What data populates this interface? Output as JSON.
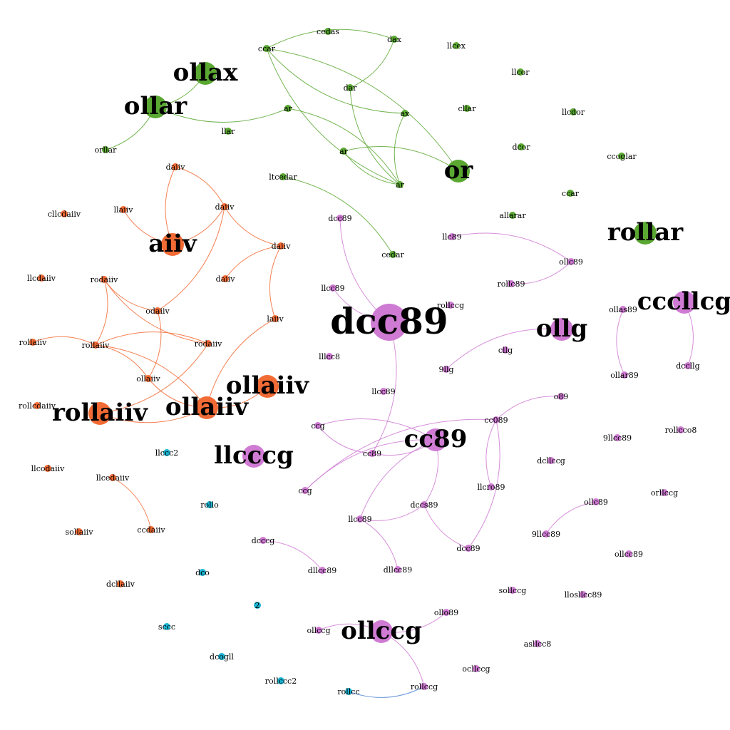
{
  "colors": {
    "green": "#5aa832",
    "orange": "#f26b35",
    "purple": "#cf7bd3",
    "cyan": "#1bb3d1",
    "blue_edge": "#4f86d6"
  },
  "nodes": [
    {
      "id": "g1",
      "label": "ollax",
      "group": "green",
      "size": "large"
    },
    {
      "id": "g2",
      "label": "ollar",
      "group": "green",
      "size": "large"
    },
    {
      "id": "g3",
      "label": "or",
      "group": "green",
      "size": "large"
    },
    {
      "id": "g4",
      "label": "rollar",
      "group": "green",
      "size": "large"
    },
    {
      "id": "g5",
      "label": "cedas",
      "group": "green",
      "size": "small"
    },
    {
      "id": "g6",
      "label": "ccar",
      "group": "green",
      "size": "small"
    },
    {
      "id": "g7",
      "label": "dax",
      "group": "green",
      "size": "small"
    },
    {
      "id": "g8",
      "label": "dar",
      "group": "green",
      "size": "small"
    },
    {
      "id": "g9",
      "label": "ar",
      "group": "green",
      "size": "small"
    },
    {
      "id": "g10",
      "label": "ax",
      "group": "green",
      "size": "small"
    },
    {
      "id": "g11",
      "label": "llar",
      "group": "green",
      "size": "small"
    },
    {
      "id": "g12",
      "label": "orllar",
      "group": "green",
      "size": "small"
    },
    {
      "id": "g13",
      "label": "ar",
      "group": "green",
      "size": "small"
    },
    {
      "id": "g14",
      "label": "ar",
      "group": "green",
      "size": "small"
    },
    {
      "id": "g15",
      "label": "ltcedar",
      "group": "green",
      "size": "small"
    },
    {
      "id": "g16",
      "label": "cedar",
      "group": "green",
      "size": "small"
    },
    {
      "id": "g17",
      "label": "llcex",
      "group": "green",
      "size": "small"
    },
    {
      "id": "g18",
      "label": "llcor",
      "group": "green",
      "size": "small"
    },
    {
      "id": "g19",
      "label": "cllar",
      "group": "green",
      "size": "small"
    },
    {
      "id": "g20",
      "label": "llcdor",
      "group": "green",
      "size": "small"
    },
    {
      "id": "g21",
      "label": "dcor",
      "group": "green",
      "size": "small"
    },
    {
      "id": "g22",
      "label": "ccoglar",
      "group": "green",
      "size": "small"
    },
    {
      "id": "g23",
      "label": "ccar",
      "group": "green",
      "size": "small"
    },
    {
      "id": "g24",
      "label": "allarar",
      "group": "green",
      "size": "small"
    },
    {
      "id": "o1",
      "label": "aiiv",
      "group": "orange",
      "size": "large"
    },
    {
      "id": "o2",
      "label": "ollaiiv",
      "group": "orange",
      "size": "large"
    },
    {
      "id": "o3",
      "label": "rollaiiv",
      "group": "orange",
      "size": "large"
    },
    {
      "id": "o4",
      "label": "ollaiiv",
      "group": "orange",
      "size": "large"
    },
    {
      "id": "o5",
      "label": "daiiv",
      "group": "orange",
      "size": "small"
    },
    {
      "id": "o6",
      "label": "daiiv",
      "group": "orange",
      "size": "small"
    },
    {
      "id": "o7",
      "label": "llaiiv",
      "group": "orange",
      "size": "small"
    },
    {
      "id": "o8",
      "label": "cllcdaiiv",
      "group": "orange",
      "size": "small"
    },
    {
      "id": "o9",
      "label": "daiiv",
      "group": "orange",
      "size": "small"
    },
    {
      "id": "o10",
      "label": "daiiv",
      "group": "orange",
      "size": "small"
    },
    {
      "id": "o11",
      "label": "llcdaiiv",
      "group": "orange",
      "size": "small"
    },
    {
      "id": "o12",
      "label": "rodaiiv",
      "group": "orange",
      "size": "small"
    },
    {
      "id": "o13",
      "label": "odaiiv",
      "group": "orange",
      "size": "small"
    },
    {
      "id": "o14",
      "label": "laiiv",
      "group": "orange",
      "size": "small"
    },
    {
      "id": "o15",
      "label": "rollaiiv",
      "group": "orange",
      "size": "small"
    },
    {
      "id": "o16",
      "label": "rodaiiv",
      "group": "orange",
      "size": "small"
    },
    {
      "id": "o17",
      "label": "ollaiiv",
      "group": "orange",
      "size": "small"
    },
    {
      "id": "o18",
      "label": "rollaiiv",
      "group": "orange",
      "size": "small"
    },
    {
      "id": "o19",
      "label": "rollcdaiiv",
      "group": "orange",
      "size": "small"
    },
    {
      "id": "o20",
      "label": "llcodaiiv",
      "group": "orange",
      "size": "small"
    },
    {
      "id": "o21",
      "label": "llcedaiiv",
      "group": "orange",
      "size": "small"
    },
    {
      "id": "o22",
      "label": "sollaiiv",
      "group": "orange",
      "size": "small"
    },
    {
      "id": "o23",
      "label": "ccdaiiv",
      "group": "orange",
      "size": "small"
    },
    {
      "id": "o24",
      "label": "dcllaiiv",
      "group": "orange",
      "size": "small"
    },
    {
      "id": "p1",
      "label": "dcc89",
      "group": "purple",
      "size": "xlarge"
    },
    {
      "id": "p2",
      "label": "cc89",
      "group": "purple",
      "size": "large"
    },
    {
      "id": "p3",
      "label": "ollg",
      "group": "purple",
      "size": "large"
    },
    {
      "id": "p4",
      "label": "llcccg",
      "group": "purple",
      "size": "large"
    },
    {
      "id": "p5",
      "label": "cccllcg",
      "group": "purple",
      "size": "large"
    },
    {
      "id": "p6",
      "label": "ollccg",
      "group": "purple",
      "size": "large"
    },
    {
      "id": "p7",
      "label": "dcc89",
      "group": "purple",
      "size": "small"
    },
    {
      "id": "p8",
      "label": "llcc89",
      "group": "purple",
      "size": "small"
    },
    {
      "id": "p9",
      "label": "llc89",
      "group": "purple",
      "size": "small"
    },
    {
      "id": "p10",
      "label": "ollc89",
      "group": "purple",
      "size": "small"
    },
    {
      "id": "p11",
      "label": "rollc89",
      "group": "purple",
      "size": "small"
    },
    {
      "id": "p12",
      "label": "rollccg",
      "group": "purple",
      "size": "small"
    },
    {
      "id": "p13",
      "label": "lllcc8",
      "group": "purple",
      "size": "small"
    },
    {
      "id": "p14",
      "label": "cllg",
      "group": "purple",
      "size": "small"
    },
    {
      "id": "p15",
      "label": "9llg",
      "group": "purple",
      "size": "small"
    },
    {
      "id": "p16",
      "label": "ollas89",
      "group": "purple",
      "size": "small"
    },
    {
      "id": "p17",
      "label": "ollar89",
      "group": "purple",
      "size": "small"
    },
    {
      "id": "p18",
      "label": "dccllg",
      "group": "purple",
      "size": "small"
    },
    {
      "id": "p19",
      "label": "llcc89",
      "group": "purple",
      "size": "small"
    },
    {
      "id": "p20",
      "label": "o89",
      "group": "purple",
      "size": "small"
    },
    {
      "id": "p21",
      "label": "ccg",
      "group": "purple",
      "size": "small"
    },
    {
      "id": "p22",
      "label": "cc089",
      "group": "purple",
      "size": "small"
    },
    {
      "id": "p23",
      "label": "cc89",
      "group": "purple",
      "size": "small"
    },
    {
      "id": "p24",
      "label": "9llcc89",
      "group": "purple",
      "size": "small"
    },
    {
      "id": "p25",
      "label": "rollcco8",
      "group": "purple",
      "size": "small"
    },
    {
      "id": "p26",
      "label": "dcllccg",
      "group": "purple",
      "size": "small"
    },
    {
      "id": "p27",
      "label": "ccg",
      "group": "purple",
      "size": "small"
    },
    {
      "id": "p28",
      "label": "llcro89",
      "group": "purple",
      "size": "small"
    },
    {
      "id": "p29",
      "label": "orllccg",
      "group": "purple",
      "size": "small"
    },
    {
      "id": "p30",
      "label": "dccs89",
      "group": "purple",
      "size": "small"
    },
    {
      "id": "p31",
      "label": "llcc89",
      "group": "purple",
      "size": "small"
    },
    {
      "id": "p32",
      "label": "ollc89",
      "group": "purple",
      "size": "small"
    },
    {
      "id": "p33",
      "label": "9llcc89",
      "group": "purple",
      "size": "small"
    },
    {
      "id": "p34",
      "label": "dcc89",
      "group": "purple",
      "size": "small"
    },
    {
      "id": "p35",
      "label": "ollcc89",
      "group": "purple",
      "size": "small"
    },
    {
      "id": "p36",
      "label": "dcccg",
      "group": "purple",
      "size": "small"
    },
    {
      "id": "p37",
      "label": "dllcc89",
      "group": "purple",
      "size": "small"
    },
    {
      "id": "p38",
      "label": "dllcc89",
      "group": "purple",
      "size": "small"
    },
    {
      "id": "p39",
      "label": "sollccg",
      "group": "purple",
      "size": "small"
    },
    {
      "id": "p40",
      "label": "llosllcc89",
      "group": "purple",
      "size": "small"
    },
    {
      "id": "p41",
      "label": "ollo89",
      "group": "purple",
      "size": "small"
    },
    {
      "id": "p42",
      "label": "ollccg",
      "group": "purple",
      "size": "small"
    },
    {
      "id": "p43",
      "label": "asllcc8",
      "group": "purple",
      "size": "small"
    },
    {
      "id": "p44",
      "label": "ocllccg",
      "group": "purple",
      "size": "small"
    },
    {
      "id": "p45",
      "label": "rollccg",
      "group": "purple",
      "size": "small"
    },
    {
      "id": "c1",
      "label": "llccc2",
      "group": "cyan",
      "size": "small"
    },
    {
      "id": "c2",
      "label": "rollo",
      "group": "cyan",
      "size": "small"
    },
    {
      "id": "c3",
      "label": "dco",
      "group": "cyan",
      "size": "small"
    },
    {
      "id": "c4",
      "label": "2",
      "group": "cyan",
      "size": "small"
    },
    {
      "id": "c5",
      "label": "sccc",
      "group": "cyan",
      "size": "small"
    },
    {
      "id": "c6",
      "label": "dcogll",
      "group": "cyan",
      "size": "small"
    },
    {
      "id": "c7",
      "label": "rollccc2",
      "group": "cyan",
      "size": "small"
    },
    {
      "id": "c8",
      "label": "rollcc",
      "group": "cyan",
      "size": "small"
    }
  ],
  "edges": [
    [
      "g2",
      "g1",
      "green"
    ],
    [
      "g2",
      "g12",
      "green"
    ],
    [
      "g2",
      "g9",
      "green"
    ],
    [
      "g9",
      "g14",
      "green"
    ],
    [
      "g10",
      "g14",
      "green"
    ],
    [
      "g10",
      "g6",
      "green"
    ],
    [
      "g7",
      "g6",
      "green"
    ],
    [
      "g7",
      "g8",
      "green"
    ],
    [
      "g8",
      "g14",
      "green"
    ],
    [
      "g6",
      "g3",
      "green"
    ],
    [
      "g6",
      "g14",
      "green"
    ],
    [
      "g13",
      "g3",
      "green"
    ],
    [
      "g13",
      "g14",
      "green"
    ],
    [
      "g15",
      "g16",
      "green"
    ],
    [
      "o5",
      "o1",
      "orange"
    ],
    [
      "o5",
      "o6",
      "orange"
    ],
    [
      "o7",
      "o1",
      "orange"
    ],
    [
      "o6",
      "o1",
      "orange"
    ],
    [
      "o6",
      "o9",
      "orange"
    ],
    [
      "o10",
      "o9",
      "orange"
    ],
    [
      "o9",
      "o14",
      "orange"
    ],
    [
      "o6",
      "o13",
      "orange"
    ],
    [
      "o12",
      "o13",
      "orange"
    ],
    [
      "o12",
      "o15",
      "orange"
    ],
    [
      "o12",
      "o16",
      "orange"
    ],
    [
      "o13",
      "o17",
      "orange"
    ],
    [
      "o16",
      "o15",
      "orange"
    ],
    [
      "o15",
      "o2",
      "orange"
    ],
    [
      "o17",
      "o2",
      "orange"
    ],
    [
      "o18",
      "o15",
      "orange"
    ],
    [
      "o3",
      "o2",
      "orange"
    ],
    [
      "o4",
      "o2",
      "orange"
    ],
    [
      "o14",
      "o2",
      "orange"
    ],
    [
      "o16",
      "o3",
      "orange"
    ],
    [
      "o17",
      "o15",
      "orange"
    ],
    [
      "o21",
      "o23",
      "orange"
    ],
    [
      "p7",
      "p1",
      "purple"
    ],
    [
      "p1",
      "p23",
      "purple"
    ],
    [
      "p8",
      "p1",
      "purple"
    ],
    [
      "p9",
      "p10",
      "purple"
    ],
    [
      "p11",
      "p10",
      "purple"
    ],
    [
      "p15",
      "p3",
      "purple"
    ],
    [
      "p16",
      "p17",
      "purple"
    ],
    [
      "p5",
      "p18",
      "purple"
    ],
    [
      "p21",
      "p23",
      "purple"
    ],
    [
      "p21",
      "p2",
      "purple"
    ],
    [
      "p23",
      "p2",
      "purple"
    ],
    [
      "p27",
      "p2",
      "purple"
    ],
    [
      "p22",
      "p27",
      "purple"
    ],
    [
      "p22",
      "p20",
      "purple"
    ],
    [
      "p22",
      "p28",
      "purple"
    ],
    [
      "p22",
      "p34",
      "purple"
    ],
    [
      "p2",
      "p31",
      "purple"
    ],
    [
      "p2",
      "p30",
      "purple"
    ],
    [
      "p30",
      "p34",
      "purple"
    ],
    [
      "p31",
      "p38",
      "purple"
    ],
    [
      "p31",
      "p30",
      "purple"
    ],
    [
      "p36",
      "p37",
      "purple"
    ],
    [
      "p32",
      "p33",
      "purple"
    ],
    [
      "p41",
      "p6",
      "purple"
    ],
    [
      "p6",
      "p42",
      "purple"
    ],
    [
      "p6",
      "p45",
      "purple"
    ],
    [
      "c8",
      "p45",
      "blue_edge"
    ]
  ]
}
